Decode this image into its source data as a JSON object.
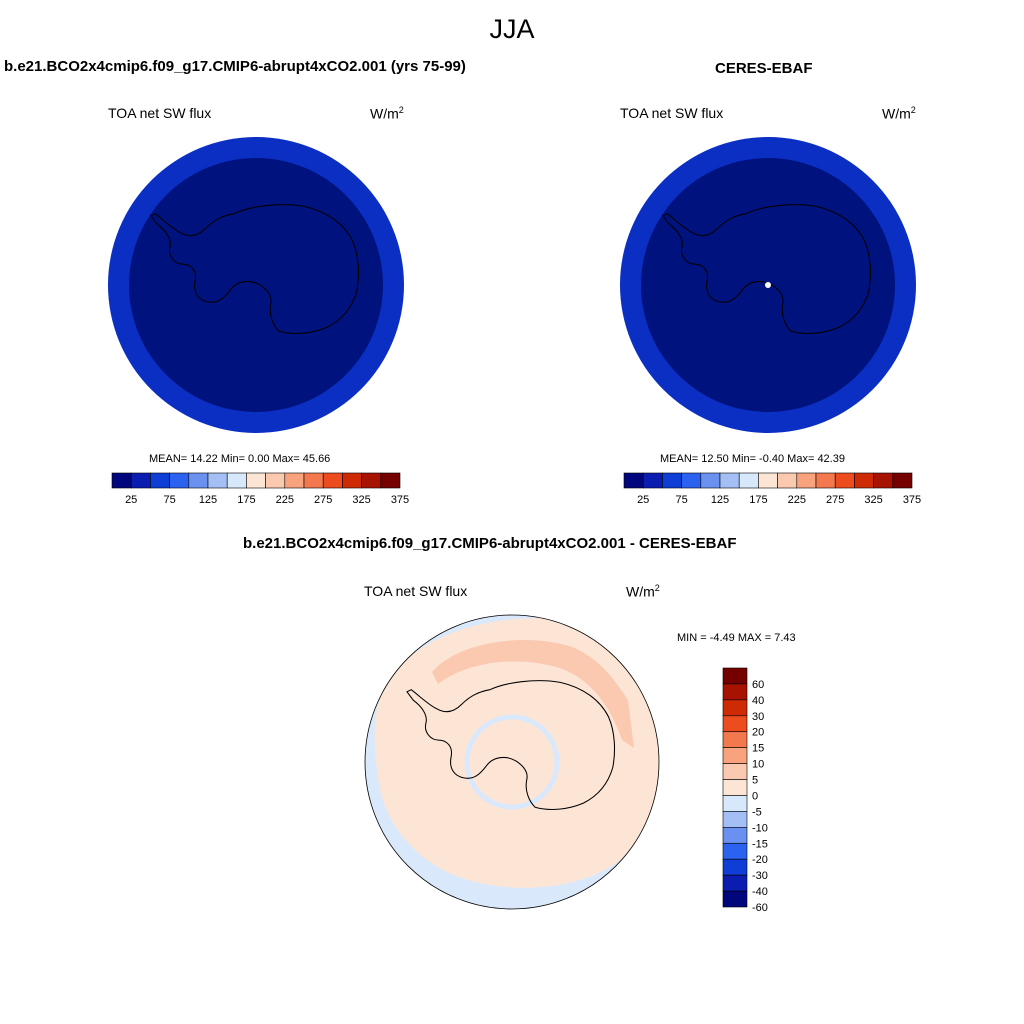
{
  "season": "JJA",
  "panels": {
    "model": {
      "title": "b.e21.BCO2x4cmip6.f09_g17.CMIP6-abrupt4xCO2.001 (yrs 75-99)",
      "variable": "TOA net SW flux",
      "units_base": "W/m",
      "units_exp": "2",
      "stats_text": "MEAN=  14.22  Min=   0.00  Max=  45.66",
      "outer_ring_color": "#0a2fc2",
      "inner_color": "#00127e"
    },
    "obs": {
      "title": "CERES-EBAF",
      "variable": "TOA net SW flux",
      "units_base": "W/m",
      "units_exp": "2",
      "stats_text": "MEAN=  12.50  Min=  -0.40  Max=  42.39",
      "outer_ring_color": "#0a2fc2",
      "inner_color": "#00127e"
    },
    "diff": {
      "title": "b.e21.BCO2x4cmip6.f09_g17.CMIP6-abrupt4xCO2.001 - CERES-EBAF",
      "variable": "TOA net SW flux",
      "units_base": "W/m",
      "units_exp": "2",
      "stats_text": "MIN =  -4.49 MAX =   7.43",
      "base_color": "#fde5d6",
      "band_color": "#fbc8b0",
      "outer_color": "#d9e9fb"
    }
  },
  "colorbar_abs": {
    "colors": [
      "#00067c",
      "#0a1db0",
      "#0e3ed6",
      "#2b63f0",
      "#6a90f0",
      "#a4bff5",
      "#d8e8fb",
      "#fde5d6",
      "#fbc8b0",
      "#f8a27e",
      "#f3784e",
      "#ec4c1e",
      "#ce2b05",
      "#a71300",
      "#750000"
    ],
    "tick_labels": [
      "25",
      "75",
      "125",
      "175",
      "225",
      "275",
      "325",
      "375"
    ]
  },
  "colorbar_diff": {
    "colors": [
      "#750000",
      "#a71300",
      "#ce2b05",
      "#ec4c1e",
      "#f3784e",
      "#f8a27e",
      "#fbc8b0",
      "#fde5d6",
      "#d8e8fb",
      "#a4bff5",
      "#6a90f0",
      "#2b63f0",
      "#0e3ed6",
      "#0a1db0",
      "#00067c"
    ],
    "tick_labels": [
      "60",
      "40",
      "30",
      "20",
      "15",
      "10",
      "5",
      "0",
      "-5",
      "-10",
      "-15",
      "-20",
      "-30",
      "-40",
      "-60"
    ]
  }
}
